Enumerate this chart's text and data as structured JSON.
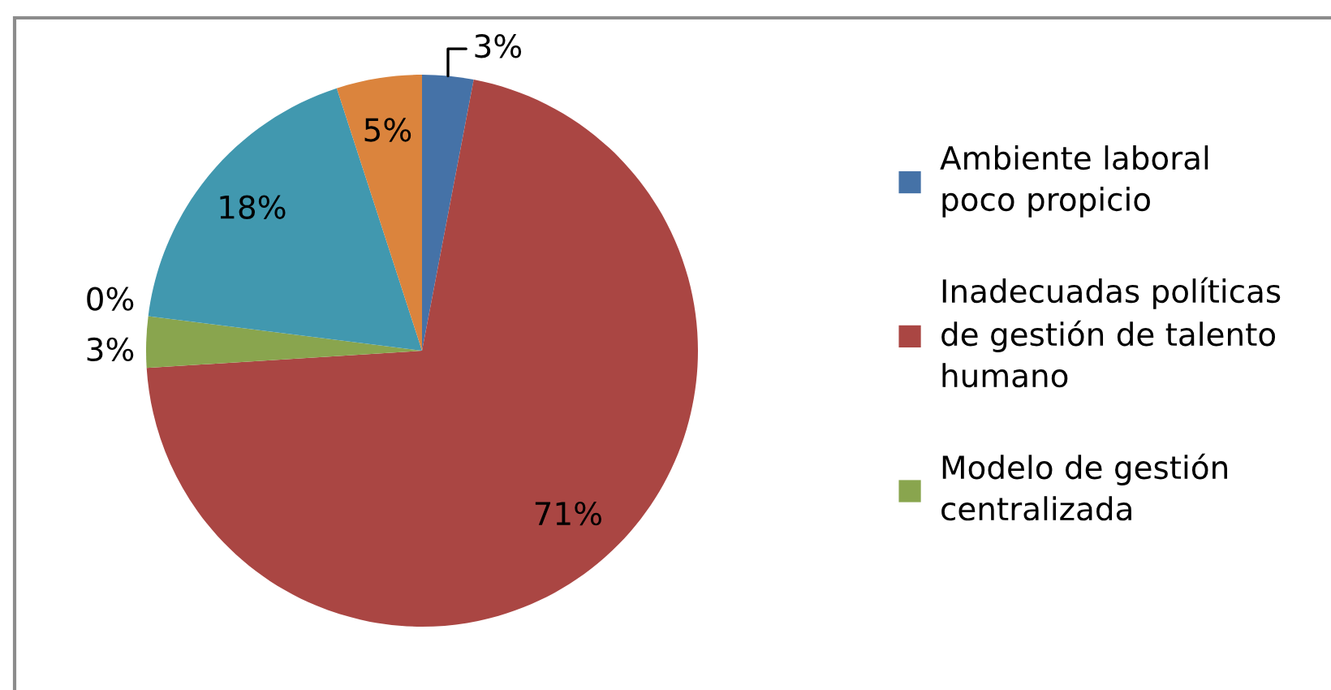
{
  "chart_data": {
    "type": "pie",
    "categories": [
      "Ambiente laboral poco propicio",
      "Inadecuadas políticas de gestión de talento humano",
      "Modelo de gestión centralizada",
      null,
      null,
      null
    ],
    "values": [
      3,
      71,
      3,
      0,
      18,
      5
    ],
    "colors": [
      "#4572a7",
      "#aa4643",
      "#89a54e",
      "#71588f",
      "#4198af",
      "#db843d"
    ],
    "value_labels": [
      "3%",
      "71%",
      "3%",
      "0%",
      "18%",
      "5%"
    ],
    "legend": "right"
  }
}
